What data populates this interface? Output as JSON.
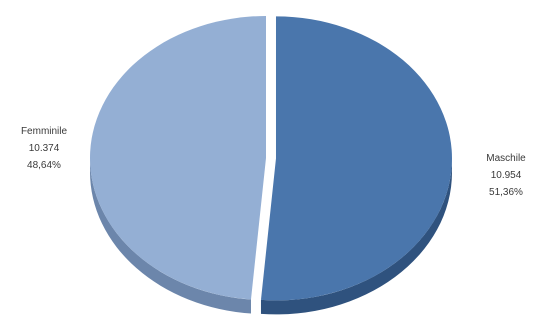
{
  "chart_data": {
    "type": "pie",
    "slices": [
      {
        "name": "Maschile",
        "value_text": "10.954",
        "value": 10954,
        "percent_text": "51,36%",
        "percent": 51.36,
        "color": "#4a76ac",
        "side_color": "#2f527e"
      },
      {
        "name": "Femminile",
        "value_text": "10.374",
        "value": 10374,
        "percent_text": "48,64%",
        "percent": 48.64,
        "color": "#94afd4",
        "side_color": "#6c86ab"
      }
    ],
    "exploded_slice": "Maschile",
    "three_d": true
  }
}
